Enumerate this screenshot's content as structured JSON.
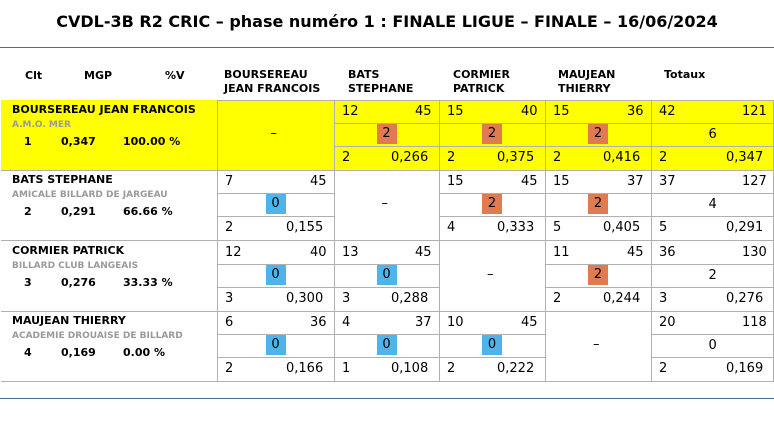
{
  "title": "CVDL-3B R2 CRIC – phase numéro 1 : FINALE LIGUE – FINALE – 16/06/2024",
  "headers": {
    "clt": "Clt",
    "mgp": "MGP",
    "pv": "%V",
    "col1": [
      "BOURSEREAU",
      "JEAN FRANCOIS"
    ],
    "col2": [
      "BATS",
      "STEPHANE"
    ],
    "col3": [
      "CORMIER",
      "PATRICK"
    ],
    "col4": [
      "MAUJEAN",
      "THIERRY"
    ],
    "totals": "Totaux"
  },
  "dash": "–",
  "players": [
    {
      "name": "BOURSEREAU JEAN FRANCOIS",
      "club": "A.M.O. MER",
      "rank": "1",
      "mgp": "0,347",
      "pct": "100.00 %",
      "cells": [
        null,
        {
          "a": "12",
          "b": "45",
          "pts": "2",
          "c": "2",
          "d": "0,266"
        },
        {
          "a": "15",
          "b": "40",
          "pts": "2",
          "c": "2",
          "d": "0,375"
        },
        {
          "a": "15",
          "b": "36",
          "pts": "2",
          "c": "2",
          "d": "0,416"
        }
      ],
      "total": {
        "a": "42",
        "b": "121",
        "pts": "6",
        "c": "2",
        "d": "0,347"
      }
    },
    {
      "name": "BATS STEPHANE",
      "club": "AMICALE BILLARD DE JARGEAU",
      "rank": "2",
      "mgp": "0,291",
      "pct": "66.66 %",
      "cells": [
        {
          "a": "7",
          "b": "45",
          "pts": "0",
          "c": "2",
          "d": "0,155"
        },
        null,
        {
          "a": "15",
          "b": "45",
          "pts": "2",
          "c": "4",
          "d": "0,333"
        },
        {
          "a": "15",
          "b": "37",
          "pts": "2",
          "c": "5",
          "d": "0,405"
        }
      ],
      "total": {
        "a": "37",
        "b": "127",
        "pts": "4",
        "c": "5",
        "d": "0,291"
      }
    },
    {
      "name": "CORMIER PATRICK",
      "club": "BILLARD CLUB LANGEAIS",
      "rank": "3",
      "mgp": "0,276",
      "pct": "33.33 %",
      "cells": [
        {
          "a": "12",
          "b": "40",
          "pts": "0",
          "c": "3",
          "d": "0,300"
        },
        {
          "a": "13",
          "b": "45",
          "pts": "0",
          "c": "3",
          "d": "0,288"
        },
        null,
        {
          "a": "11",
          "b": "45",
          "pts": "2",
          "c": "2",
          "d": "0,244"
        }
      ],
      "total": {
        "a": "36",
        "b": "130",
        "pts": "2",
        "c": "3",
        "d": "0,276"
      }
    },
    {
      "name": "MAUJEAN THIERRY",
      "club": "ACADEMIE DROUAISE DE BILLARD",
      "rank": "4",
      "mgp": "0,169",
      "pct": "0.00 %",
      "cells": [
        {
          "a": "6",
          "b": "36",
          "pts": "0",
          "c": "2",
          "d": "0,166"
        },
        {
          "a": "4",
          "b": "37",
          "pts": "0",
          "c": "1",
          "d": "0,108"
        },
        {
          "a": "10",
          "b": "45",
          "pts": "0",
          "c": "2",
          "d": "0,222"
        },
        null
      ],
      "total": {
        "a": "20",
        "b": "118",
        "pts": "0",
        "c": "2",
        "d": "0,169"
      }
    }
  ],
  "colors": {
    "highlight": "#ffff00",
    "win": "#e07a50",
    "loss": "#4fb4ea"
  }
}
